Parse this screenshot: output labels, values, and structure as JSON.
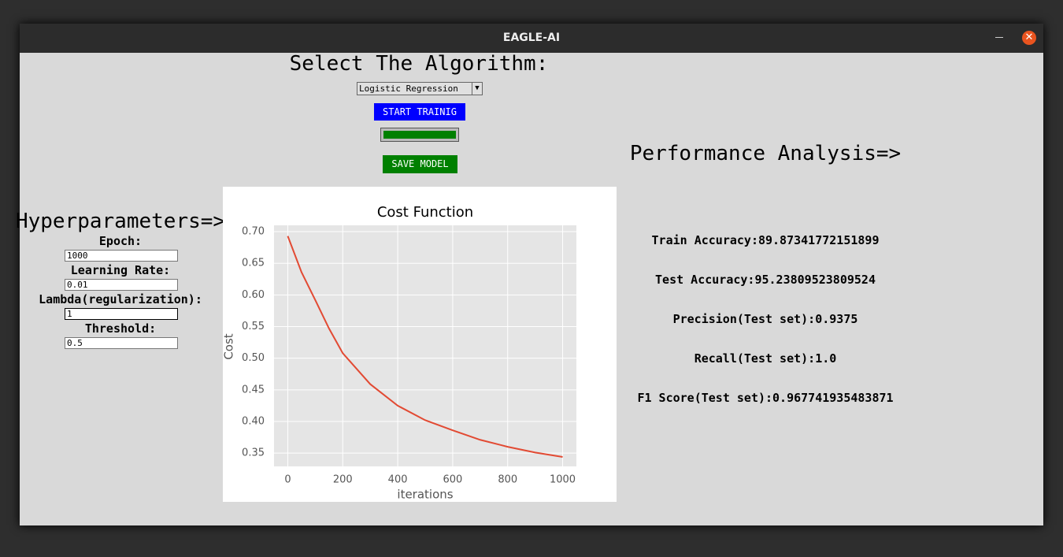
{
  "window": {
    "title": "EAGLE-AI"
  },
  "algorithm": {
    "heading": "Select The Algorithm:",
    "selected": "Logistic Regression",
    "start_button": "START TRAINIG",
    "save_button": "SAVE MODEL"
  },
  "hyperparameters": {
    "heading": "Hyperparameters=>",
    "fields": [
      {
        "label": "Epoch:",
        "value": "1000"
      },
      {
        "label": "Learning Rate:",
        "value": "0.01"
      },
      {
        "label": "Lambda(regularization):",
        "value": "1"
      },
      {
        "label": "Threshold:",
        "value": "0.5"
      }
    ]
  },
  "performance": {
    "heading": "Performance Analysis=>",
    "lines": [
      "Train Accuracy:89.87341772151899",
      "Test Accuracy:95.23809523809524",
      "Precision(Test set):0.9375",
      "Recall(Test set):1.0",
      "F1 Score(Test set):0.967741935483871"
    ]
  },
  "chart_data": {
    "type": "line",
    "title": "Cost Function",
    "x_label": "iterations",
    "y_label": "Cost",
    "x": [
      0,
      50,
      100,
      150,
      200,
      300,
      400,
      500,
      600,
      700,
      800,
      900,
      1000
    ],
    "series": [
      {
        "name": "cost",
        "color": "#e24a33",
        "values": [
          0.693,
          0.636,
          0.592,
          0.547,
          0.508,
          0.459,
          0.425,
          0.402,
          0.386,
          0.371,
          0.36,
          0.351,
          0.344
        ]
      }
    ],
    "xlim": [
      -50,
      1050
    ],
    "xticks": [
      0,
      200,
      400,
      600,
      800,
      1000
    ],
    "ylim": [
      0.329,
      0.71
    ],
    "yticks": [
      0.35,
      {
        "value": 0.4,
        "label": "0.40"
      },
      0.45,
      {
        "value": 0.5,
        "label": "0.50"
      },
      0.55,
      {
        "value": 0.6,
        "label": "0.60"
      },
      0.65,
      {
        "value": 0.7,
        "label": "0.70"
      }
    ],
    "grid": true
  }
}
